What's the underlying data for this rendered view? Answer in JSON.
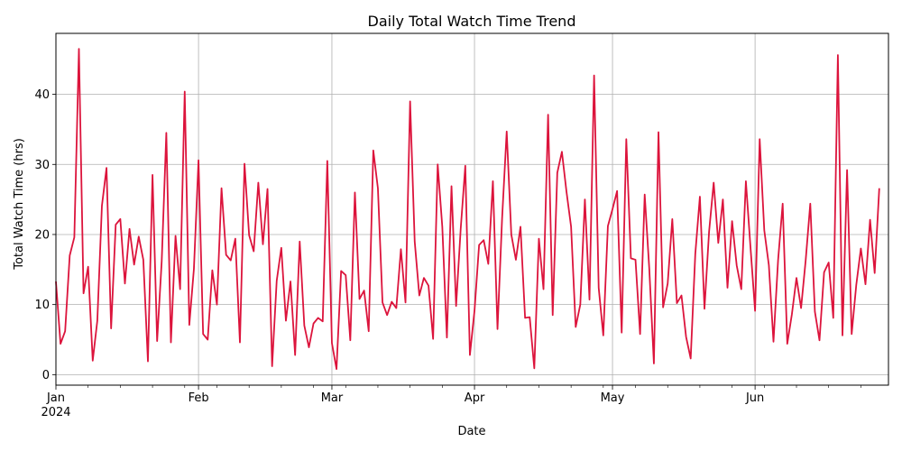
{
  "chart_data": {
    "type": "line",
    "title": "Daily Total Watch Time Trend",
    "xlabel": "Date",
    "ylabel": "Total Watch Time (hrs)",
    "x_start": "2024-01-01",
    "x_end": "2024-06-30",
    "x_major_ticks": [
      {
        "date": "2024-01-01",
        "label": "Jan",
        "sublabel": "2024"
      },
      {
        "date": "2024-02-01",
        "label": "Feb"
      },
      {
        "date": "2024-03-01",
        "label": "Mar"
      },
      {
        "date": "2024-04-01",
        "label": "Apr"
      },
      {
        "date": "2024-05-01",
        "label": "May"
      },
      {
        "date": "2024-06-01",
        "label": "Jun"
      }
    ],
    "x_minor_ticks": [
      "2024-01-08",
      "2024-01-15",
      "2024-01-22",
      "2024-01-29",
      "2024-02-05",
      "2024-02-12",
      "2024-02-19",
      "2024-02-26",
      "2024-03-04",
      "2024-03-11",
      "2024-03-18",
      "2024-03-25",
      "2024-04-08",
      "2024-04-15",
      "2024-04-22",
      "2024-04-29",
      "2024-05-06",
      "2024-05-13",
      "2024-05-20",
      "2024-05-27",
      "2024-06-03",
      "2024-06-10",
      "2024-06-17",
      "2024-06-24"
    ],
    "ylim": [
      -1.5,
      48.7
    ],
    "y_ticks": [
      0,
      10,
      20,
      30,
      40
    ],
    "grid": true,
    "series": [
      {
        "color": "#dc143c",
        "values": [
          13.3,
          4.4,
          6.2,
          17.0,
          19.6,
          46.5,
          11.6,
          15.4,
          2.0,
          7.7,
          24.1,
          29.5,
          6.6,
          21.4,
          22.2,
          13.0,
          20.8,
          15.7,
          19.7,
          16.4,
          1.9,
          28.5,
          4.8,
          16.2,
          34.5,
          4.6,
          19.8,
          12.2,
          40.4,
          7.1,
          15.1,
          30.6,
          5.8,
          5.0,
          14.9,
          10.0,
          26.6,
          17.1,
          16.3,
          19.4,
          4.6,
          30.1,
          19.9,
          17.6,
          27.4,
          18.6,
          26.5,
          1.2,
          13.4,
          18.1,
          7.7,
          13.3,
          2.8,
          19.0,
          7.0,
          3.9,
          7.3,
          8.1,
          7.6,
          30.5,
          4.5,
          0.8,
          14.8,
          14.2,
          4.9,
          26.0,
          10.8,
          12.0,
          6.2,
          32.0,
          26.6,
          10.3,
          8.5,
          10.4,
          9.5,
          17.9,
          10.3,
          39.0,
          19.0,
          11.3,
          13.8,
          12.7,
          5.1,
          30.0,
          21.1,
          5.3,
          26.9,
          9.8,
          20.8,
          29.8,
          2.8,
          9.1,
          18.5,
          19.2,
          15.8,
          27.6,
          6.5,
          22.3,
          34.7,
          20.0,
          16.4,
          21.1,
          8.1,
          8.2,
          0.9,
          19.4,
          12.2,
          37.1,
          8.5,
          28.8,
          31.8,
          26.1,
          21.1,
          6.8,
          10.0,
          25.0,
          10.7,
          42.7,
          12.4,
          5.6,
          21.2,
          23.6,
          26.2,
          6.0,
          33.6,
          16.6,
          16.4,
          5.8,
          25.7,
          15.1,
          1.6,
          34.6,
          9.6,
          13.0,
          22.2,
          10.2,
          11.3,
          5.4,
          2.3,
          17.2,
          25.4,
          9.4,
          20.4,
          27.4,
          18.8,
          25.0,
          12.4,
          21.9,
          15.6,
          12.2,
          27.6,
          18.2,
          9.1,
          33.6,
          20.6,
          15.6,
          4.7,
          16.3,
          24.4,
          4.4,
          8.6,
          13.8,
          9.5,
          16.3,
          24.4,
          9.0,
          4.9,
          14.6,
          16.0,
          8.1,
          45.6,
          5.6,
          29.2,
          5.8,
          12.8,
          18.0,
          12.9,
          22.1,
          14.5,
          26.6
        ]
      }
    ]
  }
}
